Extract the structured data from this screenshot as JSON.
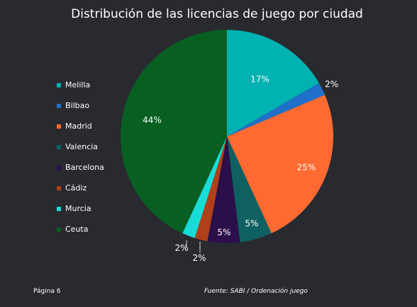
{
  "chart_data": {
    "type": "pie",
    "title": "Distribución de las licencias de juego por ciudad",
    "start_angle_deg": 0,
    "direction": "clockwise",
    "slices": [
      {
        "label": "Melilla",
        "value": 17,
        "display": "17%",
        "color": "#00b2b2"
      },
      {
        "label": "Bilbao",
        "value": 2,
        "display": "2%",
        "color": "#1e70c8"
      },
      {
        "label": "Madrid",
        "value": 25,
        "display": "25%",
        "color": "#ff6a32"
      },
      {
        "label": "Valencia",
        "value": 5,
        "display": "5%",
        "color": "#0f6060"
      },
      {
        "label": "Barcelona",
        "value": 5,
        "display": "5%",
        "color": "#2a0f4a"
      },
      {
        "label": "Cádiz",
        "value": 2,
        "display": "",
        "color": "#b0401a"
      },
      {
        "label": "Murcia",
        "value": 2,
        "display": "",
        "color": "#18dcd8"
      },
      {
        "label": "Ceuta",
        "value": 44,
        "display": "44%",
        "color": "#076021"
      }
    ],
    "outside_labels": [
      "2%",
      "2%"
    ],
    "legend_position": "left"
  },
  "footer": {
    "page": "Página 6",
    "source": "Fuente: SABI / Ordenación juego"
  }
}
